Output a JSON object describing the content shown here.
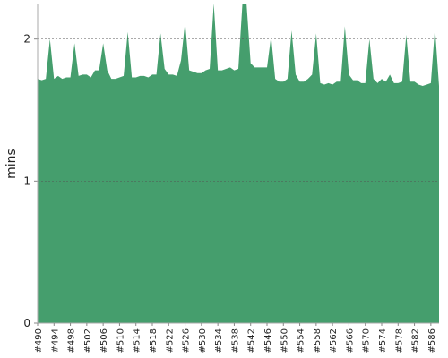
{
  "chart_data": {
    "type": "area",
    "y_label": "mins",
    "color": "#459e6d",
    "grid": true,
    "categories": [
      "#490",
      null,
      null,
      null,
      "#494",
      null,
      null,
      null,
      "#498",
      null,
      null,
      null,
      "#502",
      null,
      null,
      null,
      "#506",
      null,
      null,
      null,
      "#510",
      null,
      null,
      null,
      "#514",
      null,
      null,
      null,
      "#518",
      null,
      null,
      null,
      "#522",
      null,
      null,
      null,
      "#526",
      null,
      null,
      null,
      "#530",
      null,
      null,
      null,
      "#534",
      null,
      null,
      null,
      "#538",
      null,
      null,
      null,
      "#542",
      null,
      null,
      null,
      "#546",
      null,
      null,
      null,
      "#550",
      null,
      null,
      null,
      "#554",
      null,
      null,
      null,
      "#558",
      null,
      null,
      null,
      "#562",
      null,
      null,
      null,
      "#566",
      null,
      null,
      null,
      "#570",
      null,
      null,
      null,
      "#574",
      null,
      null,
      null,
      "#578",
      null,
      null,
      null,
      "#582",
      null,
      null,
      null,
      "#586",
      null,
      null
    ],
    "values": [
      1.72,
      1.71,
      1.72,
      2.0,
      1.72,
      1.74,
      1.72,
      1.73,
      1.73,
      1.97,
      1.74,
      1.75,
      1.75,
      1.73,
      1.78,
      1.78,
      1.97,
      1.78,
      1.72,
      1.72,
      1.73,
      1.74,
      2.05,
      1.73,
      1.73,
      1.74,
      1.74,
      1.73,
      1.75,
      1.75,
      2.04,
      1.79,
      1.75,
      1.75,
      1.74,
      1.85,
      2.12,
      1.78,
      1.77,
      1.76,
      1.76,
      1.78,
      1.79,
      2.25,
      1.78,
      1.78,
      1.79,
      1.8,
      1.78,
      1.79,
      2.25,
      2.25,
      1.83,
      1.8,
      1.8,
      1.8,
      1.8,
      2.02,
      1.72,
      1.7,
      1.7,
      1.72,
      2.06,
      1.75,
      1.7,
      1.7,
      1.72,
      1.75,
      2.04,
      1.69,
      1.68,
      1.69,
      1.68,
      1.7,
      1.7,
      2.09,
      1.75,
      1.71,
      1.71,
      1.69,
      1.69,
      2.0,
      1.72,
      1.69,
      1.72,
      1.7,
      1.75,
      1.69,
      1.69,
      1.7,
      2.03,
      1.7,
      1.7,
      1.68,
      1.67,
      1.68,
      1.69,
      2.08,
      1.67
    ],
    "ylim": [
      0,
      2.25
    ],
    "yticks": [
      0,
      1,
      2
    ]
  }
}
